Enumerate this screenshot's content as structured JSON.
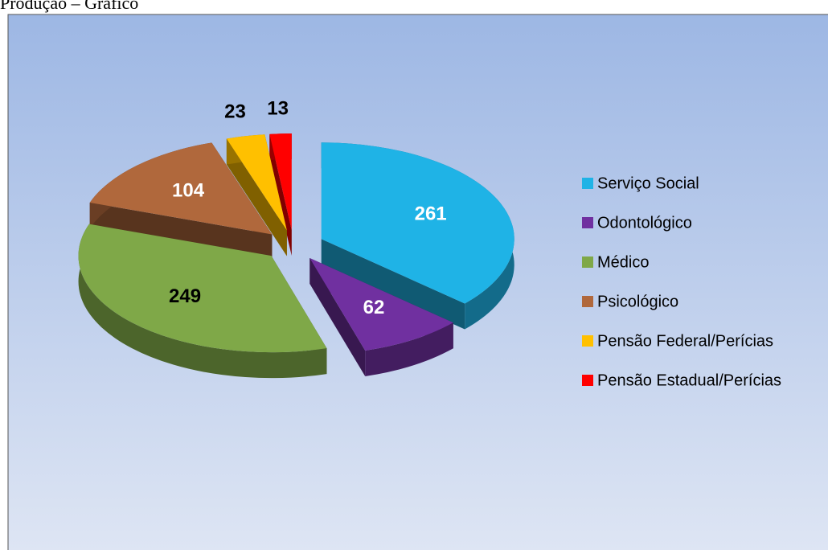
{
  "chart_data": {
    "type": "pie",
    "title": "Produção – Gráfico",
    "categories": [
      "Serviço Social",
      "Odontológico",
      "Médico",
      "Psicológico",
      "Pensão Federal/Perícias",
      "Pensão Estadual/Perícias"
    ],
    "values": [
      261,
      62,
      249,
      104,
      23,
      13
    ],
    "colors": [
      "#1fb3e6",
      "#7030a0",
      "#7fa848",
      "#b0683c",
      "#ffc000",
      "#ff0000"
    ],
    "label_colors": [
      "#ffffff",
      "#ffffff",
      "#000000",
      "#ffffff",
      "#000000",
      "#000000"
    ],
    "legend": "right"
  }
}
